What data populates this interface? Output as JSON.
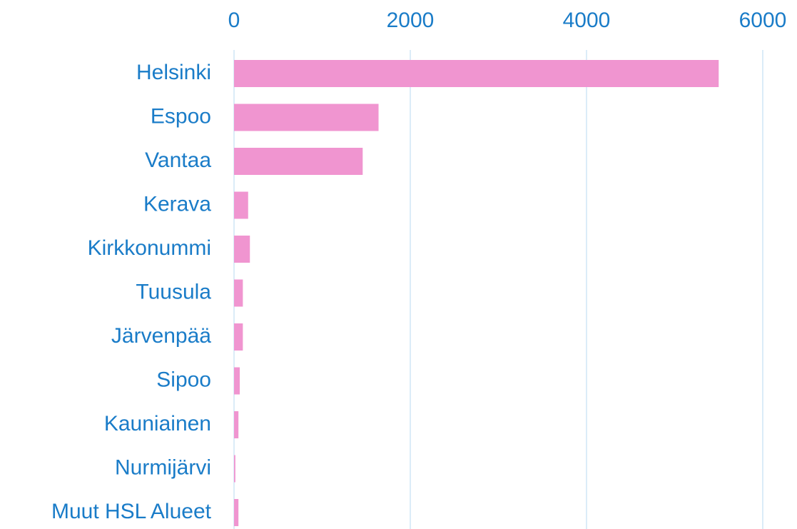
{
  "chart_data": {
    "type": "bar",
    "orientation": "horizontal",
    "categories": [
      "Helsinki",
      "Espoo",
      "Vantaa",
      "Kerava",
      "Kirkkonummi",
      "Tuusula",
      "Järvenpää",
      "Sipoo",
      "Kauniainen",
      "Nurmijärvi",
      "Muut HSL Alueet"
    ],
    "values": [
      5500,
      1640,
      1460,
      160,
      180,
      100,
      100,
      65,
      50,
      15,
      50
    ],
    "color": "#f095d0",
    "xlim": [
      0,
      6000
    ],
    "xticks": [
      0,
      2000,
      4000,
      6000
    ],
    "grid": true
  }
}
